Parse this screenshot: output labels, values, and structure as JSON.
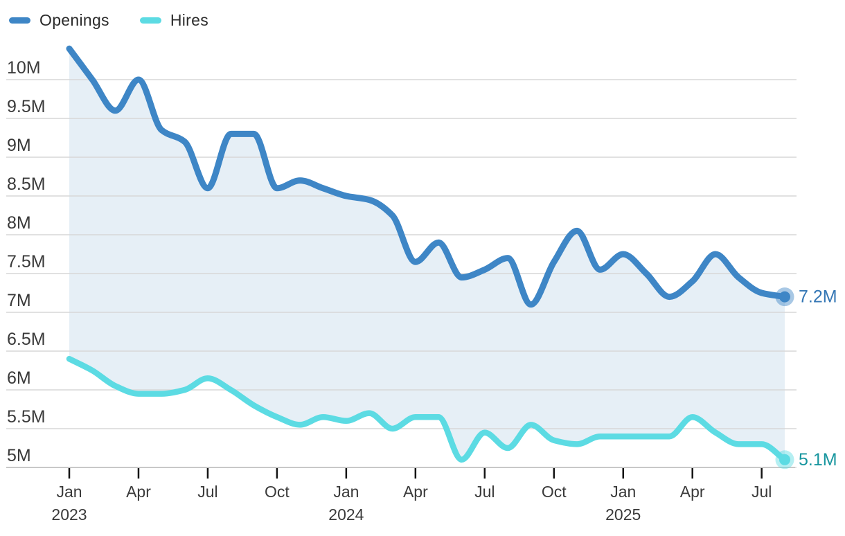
{
  "legend": {
    "items": [
      {
        "label": "Openings",
        "color": "#3E86C6"
      },
      {
        "label": "Hires",
        "color": "#5CDBE3"
      }
    ]
  },
  "chart_data": {
    "type": "line",
    "title": "",
    "x": [
      "Jan 2023",
      "Feb 2023",
      "Mar 2023",
      "Apr 2023",
      "May 2023",
      "Jun 2023",
      "Jul 2023",
      "Aug 2023",
      "Sep 2023",
      "Oct 2023",
      "Nov 2023",
      "Dec 2023",
      "Jan 2024",
      "Feb 2024",
      "Mar 2024",
      "Apr 2024",
      "May 2024",
      "Jun 2024",
      "Jul 2024",
      "Aug 2024",
      "Sep 2024",
      "Oct 2024",
      "Nov 2024",
      "Dec 2024",
      "Jan 2025",
      "Feb 2025",
      "Mar 2025",
      "Apr 2025",
      "May 2025",
      "Jun 2025",
      "Jul 2025",
      "Aug 2025"
    ],
    "series": [
      {
        "name": "Openings",
        "color": "#3E86C6",
        "label_color": "#3577B5",
        "end_label": "7.2M",
        "values": [
          10.4,
          10.0,
          9.6,
          10.0,
          9.35,
          9.2,
          8.6,
          9.3,
          9.3,
          8.6,
          8.7,
          8.6,
          8.5,
          8.45,
          8.25,
          7.65,
          7.9,
          7.45,
          7.55,
          7.7,
          7.1,
          7.65,
          8.05,
          7.55,
          7.75,
          7.5,
          7.2,
          7.4,
          7.75,
          7.45,
          7.25,
          7.2
        ]
      },
      {
        "name": "Hires",
        "color": "#5CDBE3",
        "label_color": "#18969F",
        "end_label": "5.1M",
        "values": [
          6.4,
          6.25,
          6.05,
          5.95,
          5.95,
          6.0,
          6.15,
          6.0,
          5.8,
          5.65,
          5.55,
          5.65,
          5.6,
          5.7,
          5.5,
          5.65,
          5.65,
          5.1,
          5.45,
          5.25,
          5.55,
          5.35,
          5.3,
          5.4,
          5.4,
          5.4,
          5.4,
          5.65,
          5.45,
          5.3,
          5.3,
          5.1
        ]
      }
    ],
    "unit": "M",
    "ylim": [
      5,
      10.4
    ],
    "y_ticks": [
      {
        "value": 10,
        "label": "10M"
      },
      {
        "value": 9.5,
        "label": "9.5M"
      },
      {
        "value": 9,
        "label": "9M"
      },
      {
        "value": 8.5,
        "label": "8.5M"
      },
      {
        "value": 8,
        "label": "8M"
      },
      {
        "value": 7.5,
        "label": "7.5M"
      },
      {
        "value": 7,
        "label": "7M"
      },
      {
        "value": 6.5,
        "label": "6.5M"
      },
      {
        "value": 6,
        "label": "6M"
      },
      {
        "value": 5.5,
        "label": "5.5M"
      },
      {
        "value": 5,
        "label": "5M"
      }
    ],
    "x_ticks": [
      {
        "index": 0,
        "label": "Jan",
        "year": "2023"
      },
      {
        "index": 3,
        "label": "Apr",
        "year": ""
      },
      {
        "index": 6,
        "label": "Jul",
        "year": ""
      },
      {
        "index": 9,
        "label": "Oct",
        "year": ""
      },
      {
        "index": 12,
        "label": "Jan",
        "year": "2024"
      },
      {
        "index": 15,
        "label": "Apr",
        "year": ""
      },
      {
        "index": 18,
        "label": "Jul",
        "year": ""
      },
      {
        "index": 21,
        "label": "Oct",
        "year": ""
      },
      {
        "index": 24,
        "label": "Jan",
        "year": "2025"
      },
      {
        "index": 27,
        "label": "Apr",
        "year": ""
      },
      {
        "index": 30,
        "label": "Jul",
        "year": ""
      }
    ],
    "grid": true,
    "legend_position": "top-left",
    "band_fill_color": "#E6EFF6",
    "gridline_color": "#D7D7D7",
    "axis_line_color": "#C8C8C8",
    "tick_color": "#141414",
    "text_color": "#3A3A3A"
  }
}
